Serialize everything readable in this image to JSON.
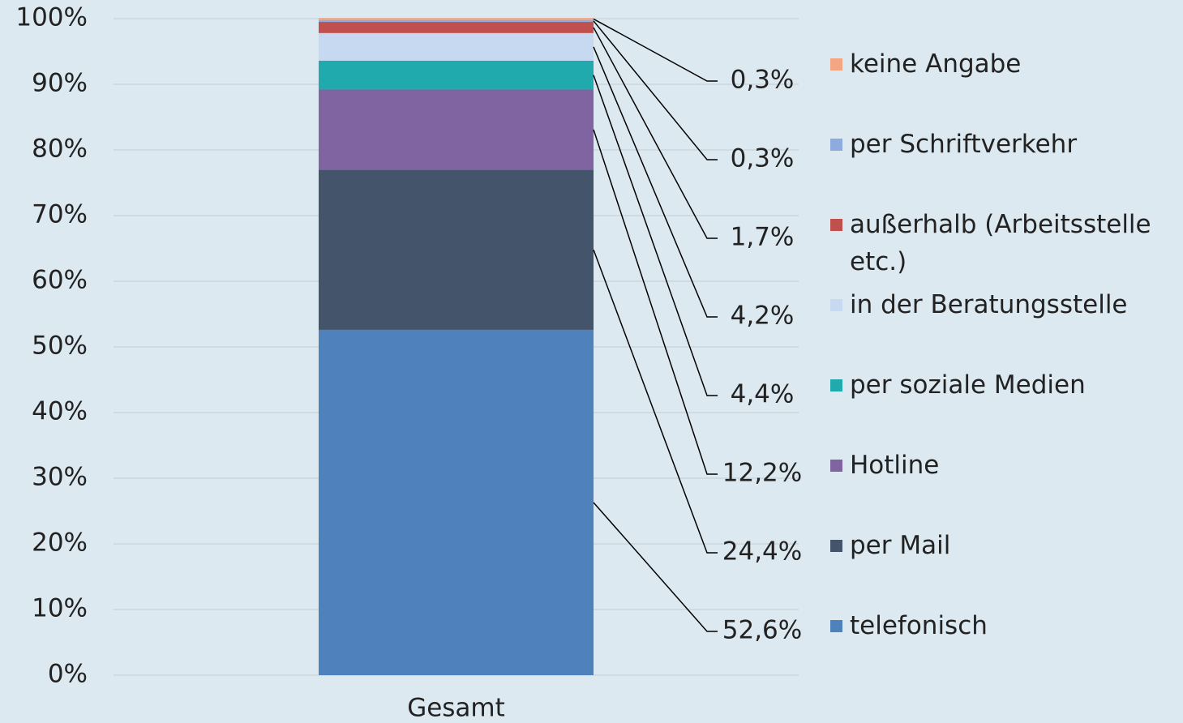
{
  "chart_data": {
    "type": "stacked_bar",
    "categories": [
      "Gesamt"
    ],
    "series": [
      {
        "name": "telefonisch",
        "color": "#4f81bd",
        "values": [
          52.6
        ],
        "value_labels": [
          "52,6%"
        ]
      },
      {
        "name": "per Mail",
        "color": "#44546a",
        "values": [
          24.4
        ],
        "value_labels": [
          "24,4%"
        ]
      },
      {
        "name": "Hotline",
        "color": "#8064a2",
        "values": [
          12.2
        ],
        "value_labels": [
          "12,2%"
        ]
      },
      {
        "name": "per soziale Medien",
        "color": "#20aaad",
        "values": [
          4.4
        ],
        "value_labels": [
          "4,4%"
        ]
      },
      {
        "name": "in der Beratungsstelle",
        "color": "#c6d9f1",
        "values": [
          4.2
        ],
        "value_labels": [
          "4,2%"
        ]
      },
      {
        "name": "außerhalb (Arbeitsstelle etc.)",
        "color": "#c0504d",
        "values": [
          1.7
        ],
        "value_labels": [
          "1,7%"
        ]
      },
      {
        "name": "per Schriftverkehr",
        "color": "#8faadc",
        "values": [
          0.3
        ],
        "value_labels": [
          "0,3%"
        ]
      },
      {
        "name": "keine Angabe",
        "color": "#f4a582",
        "values": [
          0.3
        ],
        "value_labels": [
          "0,3%"
        ]
      }
    ],
    "ylim": [
      0,
      100
    ],
    "yticks": [
      {
        "value": 0,
        "label": "0%"
      },
      {
        "value": 10,
        "label": "10%"
      },
      {
        "value": 20,
        "label": "20%"
      },
      {
        "value": 30,
        "label": "30%"
      },
      {
        "value": 40,
        "label": "40%"
      },
      {
        "value": 50,
        "label": "50%"
      },
      {
        "value": 60,
        "label": "60%"
      },
      {
        "value": 70,
        "label": "70%"
      },
      {
        "value": 80,
        "label": "80%"
      },
      {
        "value": 90,
        "label": "90%"
      },
      {
        "value": 100,
        "label": "100%"
      }
    ],
    "grid": true,
    "legend": "right"
  }
}
